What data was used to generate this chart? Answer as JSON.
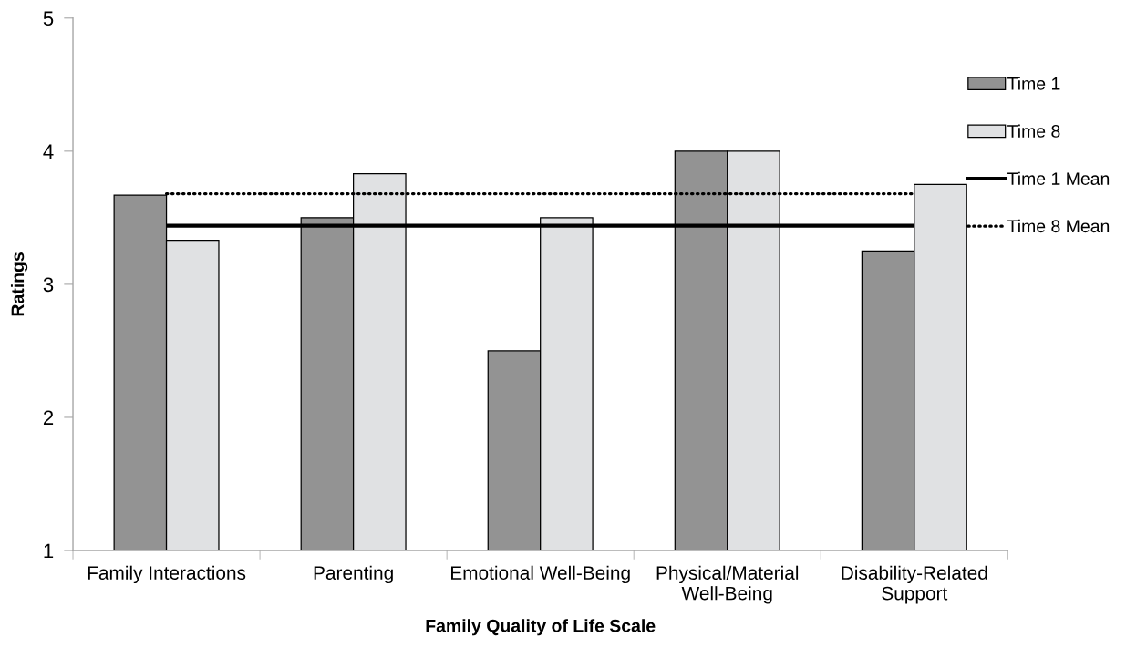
{
  "chart_data": {
    "type": "bar",
    "xlabel": "Family Quality of Life Scale",
    "ylabel": "Ratings",
    "categories": [
      "Family Interactions",
      "Parenting",
      "Emotional Well-Being",
      "Physical/Material\nWell-Being",
      "Disability-Related\nSupport"
    ],
    "series": [
      {
        "name": "Time 1",
        "color": "#939393",
        "values": [
          3.67,
          3.5,
          2.5,
          4,
          3.25
        ]
      },
      {
        "name": "Time 8",
        "color": "#e0e1e3",
        "values": [
          3.33,
          3.83,
          3.5,
          4,
          3.75
        ]
      }
    ],
    "ref_lines": [
      {
        "axis": "y",
        "value": 3.44,
        "label": "Time 1 Mean",
        "color": "#000000",
        "line_style": "solid"
      },
      {
        "axis": "y",
        "value": 3.68,
        "label": "Time 8 Mean",
        "color": "#000000",
        "line_style": "dotted"
      }
    ],
    "ylim": [
      1,
      5
    ],
    "yticks": [
      1,
      2,
      3,
      4,
      5
    ],
    "grid": false,
    "legend": "right"
  }
}
